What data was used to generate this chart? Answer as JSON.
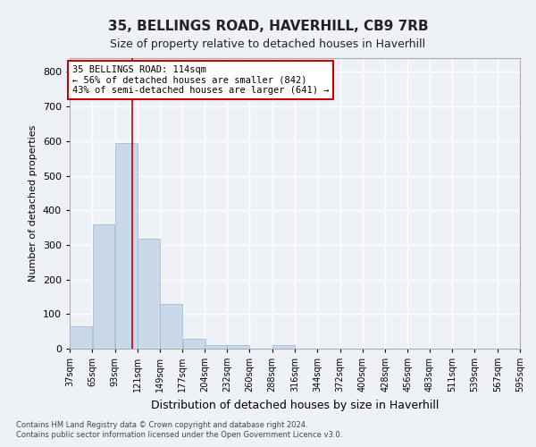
{
  "title1": "35, BELLINGS ROAD, HAVERHILL, CB9 7RB",
  "title2": "Size of property relative to detached houses in Haverhill",
  "xlabel": "Distribution of detached houses by size in Haverhill",
  "ylabel": "Number of detached properties",
  "bin_labels": [
    "37sqm",
    "65sqm",
    "93sqm",
    "121sqm",
    "149sqm",
    "177sqm",
    "204sqm",
    "232sqm",
    "260sqm",
    "288sqm",
    "316sqm",
    "344sqm",
    "372sqm",
    "400sqm",
    "428sqm",
    "456sqm",
    "483sqm",
    "511sqm",
    "539sqm",
    "567sqm",
    "595sqm"
  ],
  "bin_edges": [
    37,
    65,
    93,
    121,
    149,
    177,
    204,
    232,
    260,
    288,
    316,
    344,
    372,
    400,
    428,
    456,
    483,
    511,
    539,
    567,
    595
  ],
  "bar_values": [
    65,
    358,
    595,
    317,
    130,
    28,
    10,
    10,
    0,
    10,
    0,
    0,
    0,
    0,
    0,
    0,
    0,
    0,
    0,
    0
  ],
  "bar_color": "#c9d9ea",
  "bar_edge_color": "#9ab4cc",
  "property_size": 114,
  "vline_color": "#cc0000",
  "annotation_line1": "35 BELLINGS ROAD: 114sqm",
  "annotation_line2": "← 56% of detached houses are smaller (842)",
  "annotation_line3": "43% of semi-detached houses are larger (641) →",
  "annotation_box_color": "#ffffff",
  "annotation_box_edge": "#cc0000",
  "ylim": [
    0,
    840
  ],
  "yticks": [
    0,
    100,
    200,
    300,
    400,
    500,
    600,
    700,
    800
  ],
  "background_color": "#eef2f7",
  "grid_color": "#ffffff",
  "footer1": "Contains HM Land Registry data © Crown copyright and database right 2024.",
  "footer2": "Contains public sector information licensed under the Open Government Licence v3.0."
}
